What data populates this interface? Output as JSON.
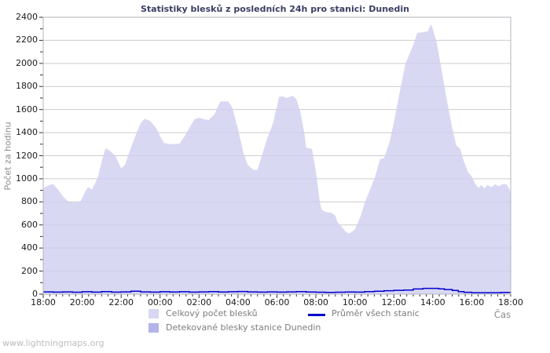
{
  "title": "Statistiky blesků z posledních 24h pro stanici: Dunedin",
  "watermark": "www.lightningmaps.org",
  "legend": {
    "total": "Celkový počet blesků",
    "average": "Průměr všech stanic",
    "station": "Detekované blesky stanice Dunedin"
  },
  "colors": {
    "title": "#3a3f63",
    "total_fill": "#cfcff0",
    "station_fill": "#b3b3ea",
    "average_line": "#0000cd",
    "gridline": "#cccccc",
    "border": "#b6b6be",
    "tick": "#333333",
    "legend_text": "#7d7d7d",
    "watermark_text": "#bcbcbc"
  },
  "chart_data": {
    "type": "area",
    "x_axis": {
      "label": "Čas",
      "ticks": [
        "18:00",
        "20:00",
        "22:00",
        "00:00",
        "02:00",
        "04:00",
        "06:00",
        "08:00",
        "10:00",
        "12:00",
        "14:00",
        "16:00",
        "18:00"
      ],
      "tick_interval_hours": 2,
      "minor_interval_hours": 0.3333,
      "range_hours": [
        0,
        24
      ]
    },
    "y_axis": {
      "label": "Počet za hodinu",
      "min": 0,
      "max": 2400,
      "tick_step": 200,
      "minor_step": 100,
      "ticks": [
        0,
        200,
        400,
        600,
        800,
        1000,
        1200,
        1400,
        1600,
        1800,
        2000,
        2200,
        2400
      ]
    },
    "grid": true,
    "legend_position": "bottom",
    "series": [
      {
        "name": "Celkový počet blesků",
        "type": "area",
        "color": "#cfcff0",
        "points": [
          [
            0,
            920
          ],
          [
            0.3,
            945
          ],
          [
            0.5,
            955
          ],
          [
            0.8,
            900
          ],
          [
            1,
            850
          ],
          [
            1.3,
            800
          ],
          [
            1.6,
            793
          ],
          [
            1.9,
            800
          ],
          [
            2.1,
            870
          ],
          [
            2.3,
            930
          ],
          [
            2.5,
            905
          ],
          [
            2.8,
            1010
          ],
          [
            3,
            1150
          ],
          [
            3.2,
            1265
          ],
          [
            3.4,
            1245
          ],
          [
            3.7,
            1200
          ],
          [
            4,
            1090
          ],
          [
            4.2,
            1120
          ],
          [
            4.5,
            1270
          ],
          [
            4.8,
            1400
          ],
          [
            5,
            1480
          ],
          [
            5.2,
            1520
          ],
          [
            5.5,
            1500
          ],
          [
            5.8,
            1440
          ],
          [
            6,
            1370
          ],
          [
            6.2,
            1310
          ],
          [
            6.5,
            1300
          ],
          [
            7,
            1305
          ],
          [
            7.3,
            1380
          ],
          [
            7.6,
            1470
          ],
          [
            7.8,
            1520
          ],
          [
            8,
            1530
          ],
          [
            8.3,
            1515
          ],
          [
            8.5,
            1510
          ],
          [
            8.8,
            1560
          ],
          [
            9,
            1640
          ],
          [
            9.1,
            1670
          ],
          [
            9.5,
            1672
          ],
          [
            9.7,
            1620
          ],
          [
            10,
            1430
          ],
          [
            10.3,
            1210
          ],
          [
            10.5,
            1120
          ],
          [
            10.8,
            1075
          ],
          [
            11,
            1080
          ],
          [
            11.3,
            1240
          ],
          [
            11.5,
            1350
          ],
          [
            11.8,
            1480
          ],
          [
            11.9,
            1560
          ],
          [
            12,
            1620
          ],
          [
            12.1,
            1710
          ],
          [
            12.3,
            1715
          ],
          [
            12.5,
            1700
          ],
          [
            12.8,
            1720
          ],
          [
            13,
            1690
          ],
          [
            13.2,
            1580
          ],
          [
            13.4,
            1400
          ],
          [
            13.5,
            1270
          ],
          [
            13.8,
            1258
          ],
          [
            14,
            1060
          ],
          [
            14.2,
            800
          ],
          [
            14.3,
            730
          ],
          [
            14.5,
            712
          ],
          [
            14.8,
            705
          ],
          [
            15,
            680
          ],
          [
            15.1,
            625
          ],
          [
            15.3,
            590
          ],
          [
            15.5,
            545
          ],
          [
            15.7,
            525
          ],
          [
            16,
            560
          ],
          [
            16.3,
            680
          ],
          [
            16.5,
            790
          ],
          [
            17,
            1000
          ],
          [
            17.3,
            1170
          ],
          [
            17.5,
            1180
          ],
          [
            17.8,
            1330
          ],
          [
            18,
            1490
          ],
          [
            18.3,
            1750
          ],
          [
            18.6,
            2000
          ],
          [
            19,
            2160
          ],
          [
            19.2,
            2265
          ],
          [
            19.5,
            2270
          ],
          [
            19.75,
            2280
          ],
          [
            19.9,
            2340
          ],
          [
            20,
            2300
          ],
          [
            20.2,
            2180
          ],
          [
            20.4,
            1990
          ],
          [
            20.7,
            1700
          ],
          [
            21,
            1440
          ],
          [
            21.2,
            1290
          ],
          [
            21.4,
            1262
          ],
          [
            21.6,
            1150
          ],
          [
            21.8,
            1060
          ],
          [
            22,
            1020
          ],
          [
            22.2,
            950
          ],
          [
            22.35,
            920
          ],
          [
            22.5,
            948
          ],
          [
            22.65,
            915
          ],
          [
            22.8,
            948
          ],
          [
            23,
            928
          ],
          [
            23.2,
            952
          ],
          [
            23.4,
            935
          ],
          [
            23.6,
            955
          ],
          [
            23.8,
            950
          ],
          [
            23.95,
            905
          ],
          [
            24,
            875
          ]
        ]
      },
      {
        "name": "Detekované blesky stanice Dunedin",
        "type": "area",
        "color": "#b3b3ea",
        "points": [
          [
            0,
            0
          ],
          [
            24,
            0
          ]
        ]
      },
      {
        "name": "Průměr všech stanic",
        "type": "step-line",
        "color": "#0000cd",
        "points": [
          [
            0,
            20
          ],
          [
            0.5,
            18
          ],
          [
            1,
            20
          ],
          [
            1.5,
            17
          ],
          [
            2,
            21
          ],
          [
            2.5,
            18
          ],
          [
            3,
            22
          ],
          [
            3.5,
            18
          ],
          [
            4,
            20
          ],
          [
            4.5,
            25
          ],
          [
            5,
            20
          ],
          [
            5.5,
            18
          ],
          [
            6,
            21
          ],
          [
            6.5,
            19
          ],
          [
            7,
            21
          ],
          [
            7.5,
            18
          ],
          [
            8,
            20
          ],
          [
            8.5,
            22
          ],
          [
            9,
            19
          ],
          [
            9.5,
            21
          ],
          [
            10,
            23
          ],
          [
            10.5,
            20
          ],
          [
            11,
            18
          ],
          [
            11.5,
            20
          ],
          [
            12,
            18
          ],
          [
            12.5,
            20
          ],
          [
            13,
            22
          ],
          [
            13.5,
            19
          ],
          [
            14,
            17
          ],
          [
            14.5,
            15
          ],
          [
            15,
            17
          ],
          [
            15.5,
            19
          ],
          [
            16,
            18
          ],
          [
            16.5,
            22
          ],
          [
            17,
            26
          ],
          [
            17.5,
            30
          ],
          [
            18,
            33
          ],
          [
            18.5,
            36
          ],
          [
            19,
            45
          ],
          [
            19.5,
            50
          ],
          [
            20,
            50
          ],
          [
            20.3,
            46
          ],
          [
            20.6,
            40
          ],
          [
            21,
            32
          ],
          [
            21.3,
            22
          ],
          [
            21.6,
            16
          ],
          [
            22,
            13
          ],
          [
            22.5,
            13
          ],
          [
            23,
            13
          ],
          [
            23.5,
            15
          ],
          [
            24,
            17
          ]
        ]
      }
    ]
  }
}
